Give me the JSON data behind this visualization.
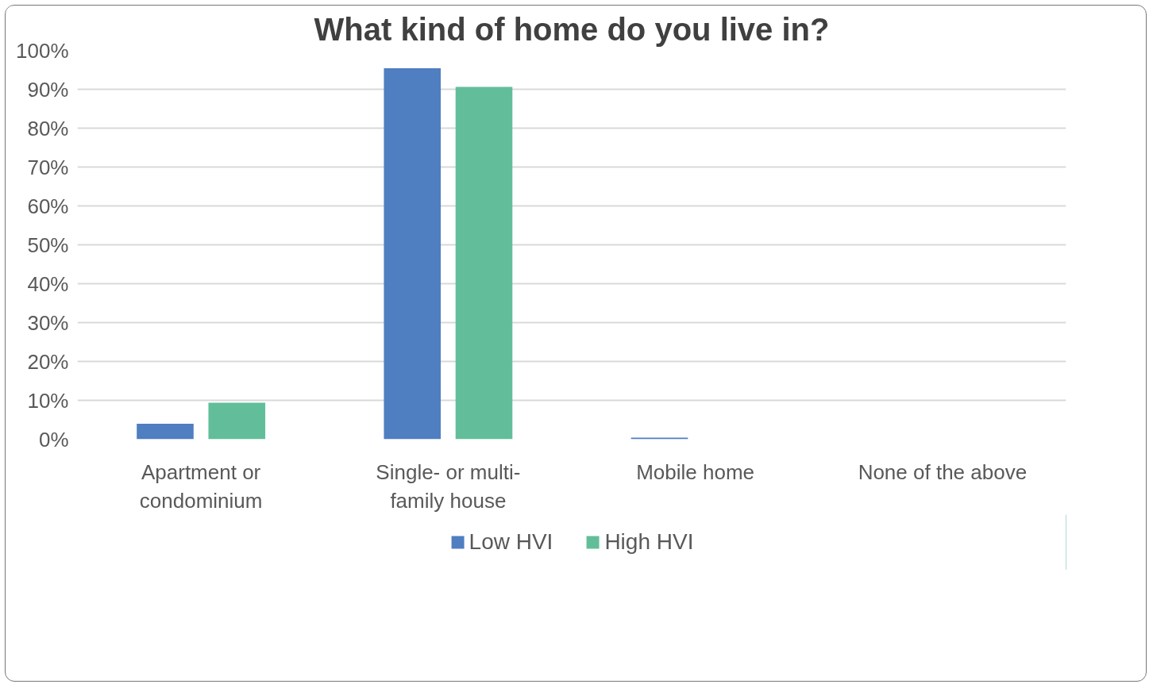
{
  "chart_data": {
    "type": "bar",
    "title": "What kind of home do you live in?",
    "categories": [
      "Apartment or condominium",
      "Single- or multi-family house",
      "Mobile home",
      "None of the above"
    ],
    "series": [
      {
        "name": "Low HVI",
        "color": "#4f7ec1",
        "values": [
          4,
          95.4,
          0.4,
          0
        ]
      },
      {
        "name": "High HVI",
        "color": "#62be9a",
        "values": [
          9.4,
          90.6,
          0,
          0
        ]
      }
    ],
    "ylim": [
      0,
      100
    ],
    "yticks": [
      {
        "value": 0,
        "label": "0%"
      },
      {
        "value": 10,
        "label": "10%"
      },
      {
        "value": 20,
        "label": "20%"
      },
      {
        "value": 30,
        "label": "30%"
      },
      {
        "value": 40,
        "label": "40%"
      },
      {
        "value": 50,
        "label": "50%"
      },
      {
        "value": 60,
        "label": "60%"
      },
      {
        "value": 70,
        "label": "70%"
      },
      {
        "value": 80,
        "label": "80%"
      },
      {
        "value": 90,
        "label": "90%"
      },
      {
        "value": 100,
        "label": "100%"
      }
    ],
    "grid": "y",
    "legend": "bottom"
  }
}
